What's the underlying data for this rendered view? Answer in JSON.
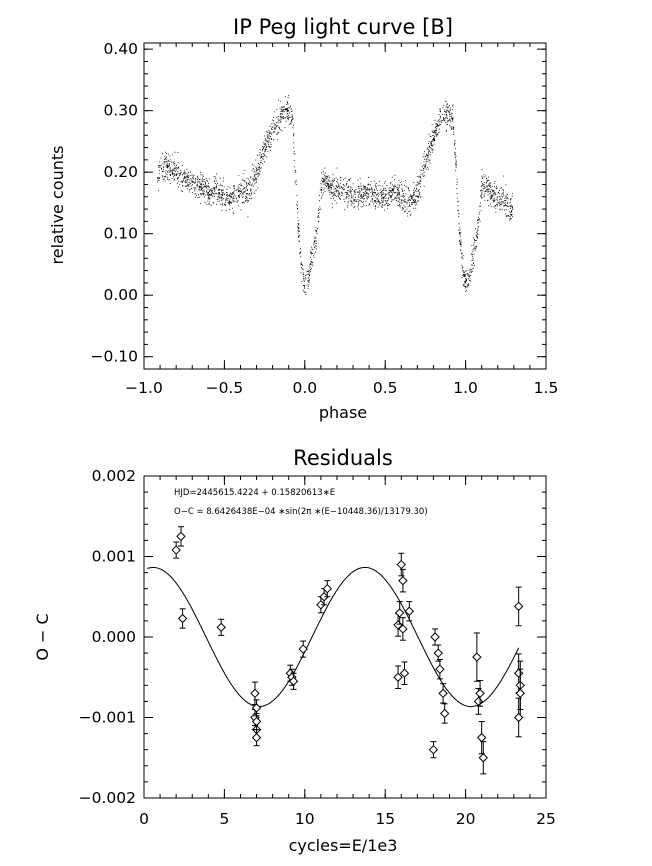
{
  "colors": {
    "ink": "#000000",
    "background": "#ffffff"
  },
  "chart_data": [
    {
      "type": "scatter",
      "title": "IP Peg light curve [B]",
      "xlabel": "phase",
      "ylabel": "relative counts",
      "xlim": [
        -1.0,
        1.5
      ],
      "ylim": [
        -0.12,
        0.41
      ],
      "xticks": [
        -1.0,
        -0.5,
        0.0,
        0.5,
        1.0,
        1.5
      ],
      "xtick_labels": [
        "−1.0",
        "−0.5",
        "0.0",
        "0.5",
        "1.0",
        "1.5"
      ],
      "yticks": [
        -0.1,
        0.0,
        0.1,
        0.2,
        0.3,
        0.4
      ],
      "ytick_labels": [
        "−0.10",
        "0.00",
        "0.10",
        "0.20",
        "0.30",
        "0.40"
      ],
      "grid": false,
      "marker": "dot",
      "phase_range": [
        -0.92,
        1.29
      ],
      "light_curve": {
        "phase": [
          -0.92,
          -0.85,
          -0.8,
          -0.75,
          -0.7,
          -0.66,
          -0.6,
          -0.55,
          -0.5,
          -0.45,
          -0.4,
          -0.35,
          -0.3,
          -0.25,
          -0.2,
          -0.15,
          -0.12,
          -0.1,
          -0.08,
          -0.06,
          -0.04,
          -0.02,
          0.0,
          0.02,
          0.04,
          0.06,
          0.08,
          0.1,
          0.12,
          0.15,
          0.2,
          0.25,
          0.3,
          0.35,
          0.4,
          0.45,
          0.5,
          0.55,
          0.6,
          0.65,
          0.7,
          0.75,
          0.8,
          0.85,
          0.88,
          0.9,
          0.92,
          0.94,
          0.96,
          0.98,
          1.0,
          1.02,
          1.04,
          1.06,
          1.08,
          1.1,
          1.15,
          1.2,
          1.25,
          1.29
        ],
        "counts": [
          0.2,
          0.21,
          0.2,
          0.19,
          0.18,
          0.18,
          0.17,
          0.17,
          0.16,
          0.16,
          0.17,
          0.17,
          0.2,
          0.24,
          0.27,
          0.29,
          0.3,
          0.3,
          0.29,
          0.2,
          0.1,
          0.04,
          0.01,
          0.03,
          0.06,
          0.09,
          0.12,
          0.18,
          0.19,
          0.18,
          0.17,
          0.17,
          0.16,
          0.16,
          0.17,
          0.16,
          0.16,
          0.17,
          0.16,
          0.15,
          0.17,
          0.22,
          0.26,
          0.29,
          0.3,
          0.29,
          0.28,
          0.2,
          0.1,
          0.04,
          0.02,
          0.03,
          0.06,
          0.09,
          0.12,
          0.18,
          0.17,
          0.16,
          0.15,
          0.14
        ]
      }
    },
    {
      "type": "scatter",
      "title": "Residuals",
      "xlabel": "cycles=E/1e3",
      "ylabel": "O − C",
      "xlim": [
        0,
        25
      ],
      "ylim": [
        -0.002,
        0.002
      ],
      "xticks": [
        0,
        5,
        10,
        15,
        20,
        25
      ],
      "xtick_labels": [
        "0",
        "5",
        "10",
        "15",
        "20",
        "25"
      ],
      "yticks": [
        -0.002,
        -0.001,
        0.0,
        0.001,
        0.002
      ],
      "ytick_labels": [
        "−0.002",
        "−0.001",
        "0.000",
        "0.001",
        "0.002"
      ],
      "grid": false,
      "marker": "diamond",
      "annotations": [
        "HJD=2445615.4224 + 0.15820613∗E",
        "O−C = 8.6426438E−04 ∗sin(2π ∗(E−10448.36)/13179.30)"
      ],
      "fit": {
        "amplitude": 0.00086426438,
        "period_cycles": 13.1793,
        "epoch_cycles": 10.44836
      },
      "points": {
        "x": [
          2.0,
          2.3,
          2.4,
          4.8,
          6.9,
          6.9,
          7.0,
          7.0,
          7.0,
          7.0,
          9.1,
          9.2,
          9.3,
          9.9,
          11.0,
          11.2,
          11.4,
          15.8,
          15.8,
          15.9,
          16.0,
          16.1,
          16.1,
          16.2,
          16.5,
          18.0,
          18.1,
          18.3,
          18.4,
          18.6,
          18.7,
          20.7,
          20.8,
          20.9,
          21.0,
          21.1,
          23.3,
          23.3,
          23.4,
          23.4,
          23.3
        ],
        "y": [
          0.00108,
          0.00125,
          0.00023,
          0.00012,
          -0.0007,
          -0.001,
          -0.00115,
          -0.00125,
          -0.00088,
          -0.00105,
          -0.00045,
          -0.0005,
          -0.00055,
          -0.00015,
          0.0004,
          0.0005,
          0.0006,
          0.00015,
          -0.0005,
          0.0003,
          0.0009,
          0.0007,
          0.0001,
          -0.00045,
          0.00032,
          -0.0014,
          0.0,
          -0.0002,
          -0.0004,
          -0.0007,
          -0.00095,
          -0.00025,
          -0.0008,
          -0.0007,
          -0.00125,
          -0.0015,
          0.00038,
          -0.00045,
          -0.0006,
          -0.0007,
          -0.001
        ],
        "err": [
          0.0001,
          0.00012,
          0.00012,
          0.0001,
          0.00014,
          0.0001,
          0.0001,
          0.0001,
          0.0001,
          0.0001,
          0.0001,
          0.0001,
          0.0001,
          0.0001,
          0.0001,
          0.0001,
          0.0001,
          0.00014,
          0.00014,
          0.00014,
          0.00014,
          0.00014,
          0.00014,
          0.00014,
          0.00012,
          0.0001,
          0.0001,
          0.0001,
          0.00012,
          0.00012,
          0.00012,
          0.0003,
          0.00016,
          0.00016,
          0.0002,
          0.0002,
          0.00024,
          0.00024,
          0.0003,
          0.0003,
          0.00024
        ]
      }
    }
  ]
}
